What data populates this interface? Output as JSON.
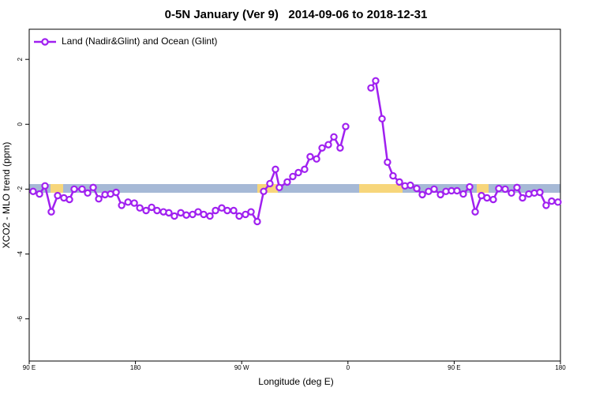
{
  "chart_data": {
    "type": "line",
    "title": "0-5N January (Ver 9)   2014-09-06 to 2018-12-31",
    "x_label": "Longitude (deg E)",
    "y_label": "XCO2 - MLO trend (ppm)",
    "xlim": [
      90,
      540
    ],
    "ylim": [
      -7.3,
      2.93
    ],
    "xticks": [
      {
        "value": 90,
        "label": "90 E"
      },
      180,
      {
        "value": 270,
        "label": "90 W"
      },
      {
        "value": 360,
        "label": "0"
      },
      {
        "value": 450,
        "label": "90 E"
      },
      {
        "value": 540,
        "label": "180"
      }
    ],
    "yticks": [
      -6,
      -4,
      -2,
      0,
      2
    ],
    "legend": "top-left",
    "series": [
      {
        "name": "Land (Nadir&Glint) and Ocean (Glint)",
        "color": "#a020f0",
        "x": [
          93.3,
          98.7,
          103.4,
          108.7,
          114.1,
          119.4,
          124.1,
          128.1,
          134.8,
          139.5,
          144.2,
          148.9,
          154.2,
          158.9,
          163.6,
          168.3,
          173.7,
          179.0,
          183.7,
          189.0,
          193.7,
          198.3,
          203.7,
          208.3,
          213.0,
          218.4,
          223.1,
          228.4,
          233.1,
          237.8,
          243.1,
          247.8,
          253.1,
          257.8,
          263.2,
          267.9,
          273.2,
          277.9,
          283.2,
          288.6,
          293.9,
          298.6,
          301.9,
          308.6,
          313.3,
          318.0,
          323.3,
          328.0,
          333.4,
          338.1,
          343.4,
          348.1,
          353.4,
          358.1,
          368.8,
          379.5,
          383.5,
          388.9,
          393.5,
          398.2,
          403.6,
          408.3,
          412.9,
          418.3,
          423.0,
          428.3,
          433.0,
          438.4,
          443.0,
          447.7,
          452.4,
          457.7,
          463.1,
          467.8,
          473.1,
          477.8,
          483.1,
          487.8,
          493.2,
          498.5,
          503.2,
          507.9,
          513.2,
          517.9,
          522.6,
          527.9,
          532.6,
          537.9
        ],
        "values": [
          -2.07,
          -2.15,
          -1.9,
          -2.7,
          -2.2,
          -2.27,
          -2.32,
          -2.0,
          -2.0,
          -2.12,
          -1.95,
          -2.3,
          -2.17,
          -2.15,
          -2.1,
          -2.5,
          -2.4,
          -2.43,
          -2.58,
          -2.66,
          -2.56,
          -2.66,
          -2.7,
          -2.73,
          -2.83,
          -2.73,
          -2.8,
          -2.78,
          -2.7,
          -2.78,
          -2.83,
          -2.66,
          -2.58,
          -2.66,
          -2.66,
          -2.83,
          -2.78,
          -2.7,
          -3.0,
          -2.07,
          -1.83,
          -1.39,
          -1.95,
          -1.78,
          -1.61,
          -1.49,
          -1.39,
          -1.0,
          -1.07,
          -0.73,
          -0.63,
          -0.39,
          -0.73,
          -0.07,
          null,
          1.12,
          1.34,
          0.17,
          -1.17,
          -1.59,
          -1.78,
          -1.9,
          -1.88,
          -1.98,
          -2.17,
          -2.07,
          -2.0,
          -2.17,
          -2.07,
          -2.05,
          -2.05,
          -2.15,
          -1.93,
          -2.7,
          -2.2,
          -2.27,
          -2.32,
          -1.98,
          -2.0,
          -2.12,
          -1.95,
          -2.27,
          -2.15,
          -2.12,
          -2.1,
          -2.5,
          -2.37,
          -2.4
        ]
      }
    ]
  }
}
